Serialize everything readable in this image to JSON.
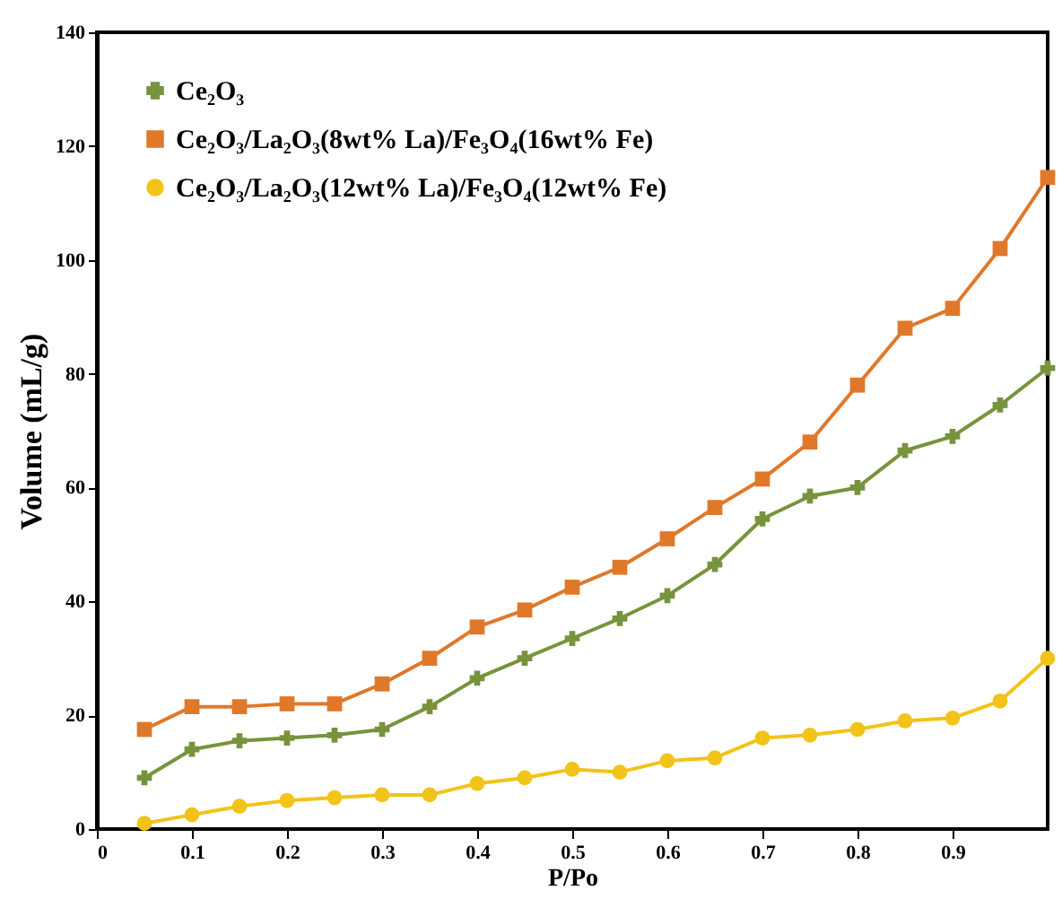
{
  "chart_data": {
    "type": "line",
    "xlabel": "P/Po",
    "ylabel": "Volume (mL/g)",
    "x": [
      0.05,
      0.1,
      0.15,
      0.2,
      0.25,
      0.3,
      0.35,
      0.4,
      0.45,
      0.5,
      0.55,
      0.6,
      0.65,
      0.7,
      0.75,
      0.8,
      0.85,
      0.9,
      0.95,
      1.0
    ],
    "series": [
      {
        "name": "Ce₂O₃",
        "color": "#77933c",
        "marker": "cross",
        "values": [
          9,
          14,
          15.5,
          16,
          16.5,
          17.5,
          21.5,
          26.5,
          30,
          33.5,
          37,
          41,
          46.5,
          54.5,
          58.5,
          60,
          66.5,
          69,
          74.5,
          81
        ]
      },
      {
        "name": "Ce₂O₃/La₂O₃(8wt% La)/Fe₃O₄(16wt% Fe)",
        "color": "#e0782a",
        "marker": "square",
        "values": [
          17.5,
          21.5,
          21.5,
          22,
          22,
          25.5,
          30,
          35.5,
          38.5,
          42.5,
          46,
          51,
          56.5,
          61.5,
          68,
          78,
          88,
          91.5,
          102,
          114.5
        ]
      },
      {
        "name": "Ce₂O₃/La₂O₃(12wt% La)/Fe₃O₄(12wt% Fe)",
        "color": "#f2c318",
        "marker": "circle",
        "values": [
          1,
          2.5,
          4,
          5,
          5.5,
          6,
          6,
          8,
          9,
          10.5,
          10,
          12,
          12.5,
          16,
          16.5,
          17.5,
          19,
          19.5,
          22.5,
          30
        ]
      }
    ],
    "xlim": [
      0,
      1
    ],
    "xticks": [
      0,
      0.1,
      0.2,
      0.3,
      0.4,
      0.5,
      0.6,
      0.7,
      0.8,
      0.9
    ],
    "ylim": [
      0,
      140
    ],
    "yticks": [
      0,
      20,
      40,
      60,
      80,
      100,
      120,
      140
    ],
    "grid": false,
    "legend": "top left"
  }
}
